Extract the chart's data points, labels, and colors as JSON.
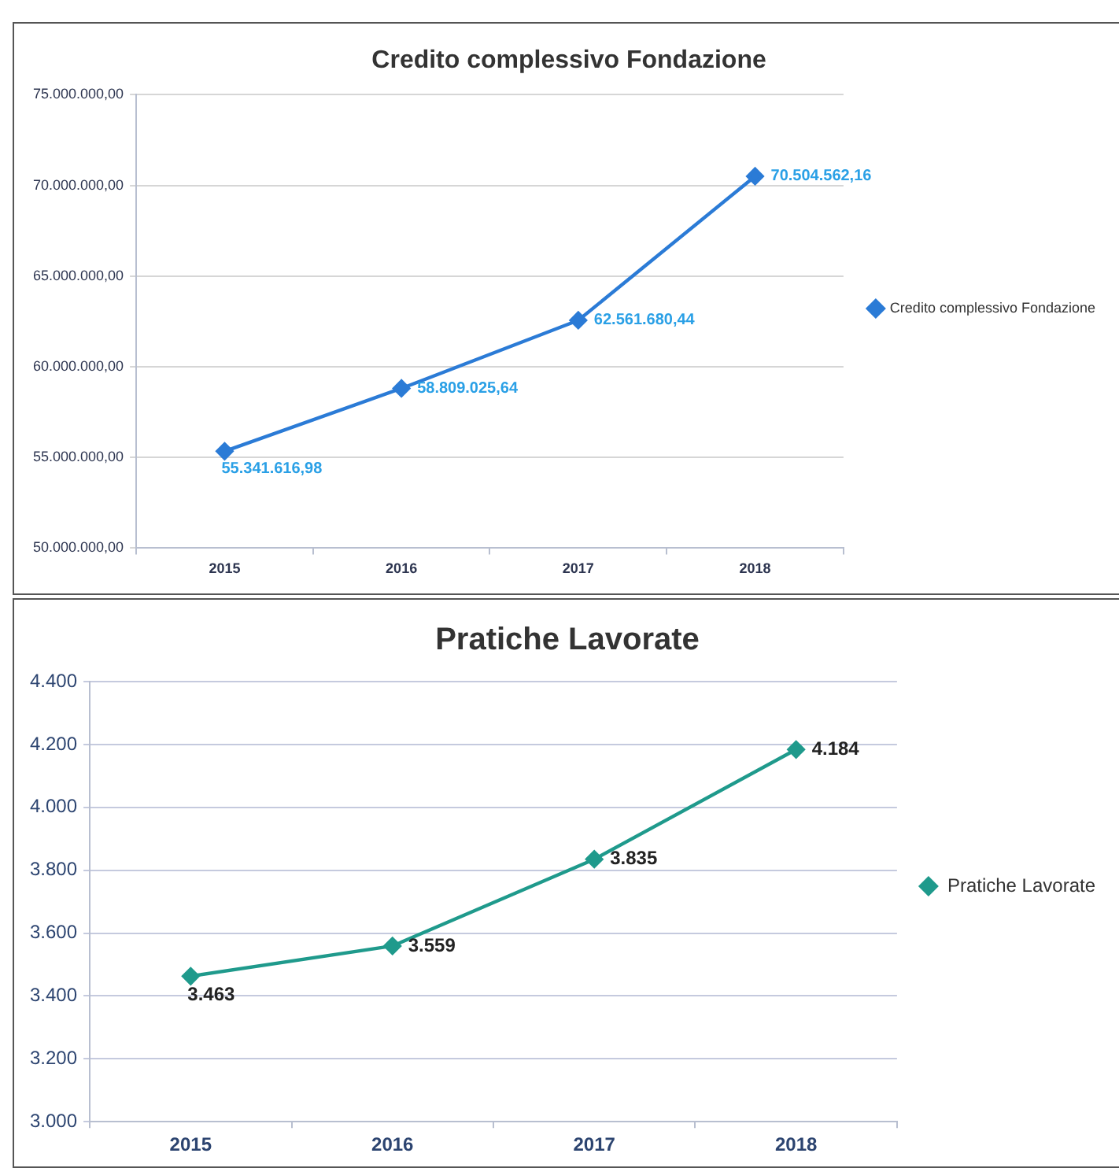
{
  "chart_data": [
    {
      "type": "line",
      "title": "Credito complessivo Fondazione",
      "categories": [
        "2015",
        "2016",
        "2017",
        "2018"
      ],
      "series": [
        {
          "name": "Credito complessivo Fondazione",
          "color": "#2b7bd6",
          "values": [
            55341616.98,
            58809025.64,
            62561680.44,
            70504562.16
          ],
          "value_labels": [
            "55.341.616,98",
            "58.809.025,64",
            "62.561.680,44",
            "70.504.562,16"
          ]
        }
      ],
      "ylim": [
        50000000,
        75000000
      ],
      "yticks": [
        {
          "value": 50000000,
          "label": "50.000.000,00"
        },
        {
          "value": 55000000,
          "label": "55.000.000,00"
        },
        {
          "value": 60000000,
          "label": "60.000.000,00"
        },
        {
          "value": 65000000,
          "label": "65.000.000,00"
        },
        {
          "value": 70000000,
          "label": "70.000.000,00"
        },
        {
          "value": 75000000,
          "label": "75.000.000,00"
        }
      ],
      "grid": "y",
      "legend": "right",
      "marker": "diamond",
      "line_style": "solid"
    },
    {
      "type": "line",
      "title": "Pratiche Lavorate",
      "categories": [
        "2015",
        "2016",
        "2017",
        "2018"
      ],
      "series": [
        {
          "name": "Pratiche Lavorate",
          "color": "#1f9a8c",
          "values": [
            3463,
            3559,
            3835,
            4184
          ],
          "value_labels": [
            "3.463",
            "3.559",
            "3.835",
            "4.184"
          ]
        }
      ],
      "ylim": [
        3000,
        4400
      ],
      "yticks": [
        {
          "value": 3000,
          "label": "3.000"
        },
        {
          "value": 3200,
          "label": "3.200"
        },
        {
          "value": 3400,
          "label": "3.400"
        },
        {
          "value": 3600,
          "label": "3.600"
        },
        {
          "value": 3800,
          "label": "3.800"
        },
        {
          "value": 4000,
          "label": "4.000"
        },
        {
          "value": 4200,
          "label": "4.200"
        },
        {
          "value": 4400,
          "label": "4.400"
        }
      ],
      "grid": "y",
      "legend": "right",
      "marker": "diamond",
      "line_style": "solid"
    }
  ]
}
